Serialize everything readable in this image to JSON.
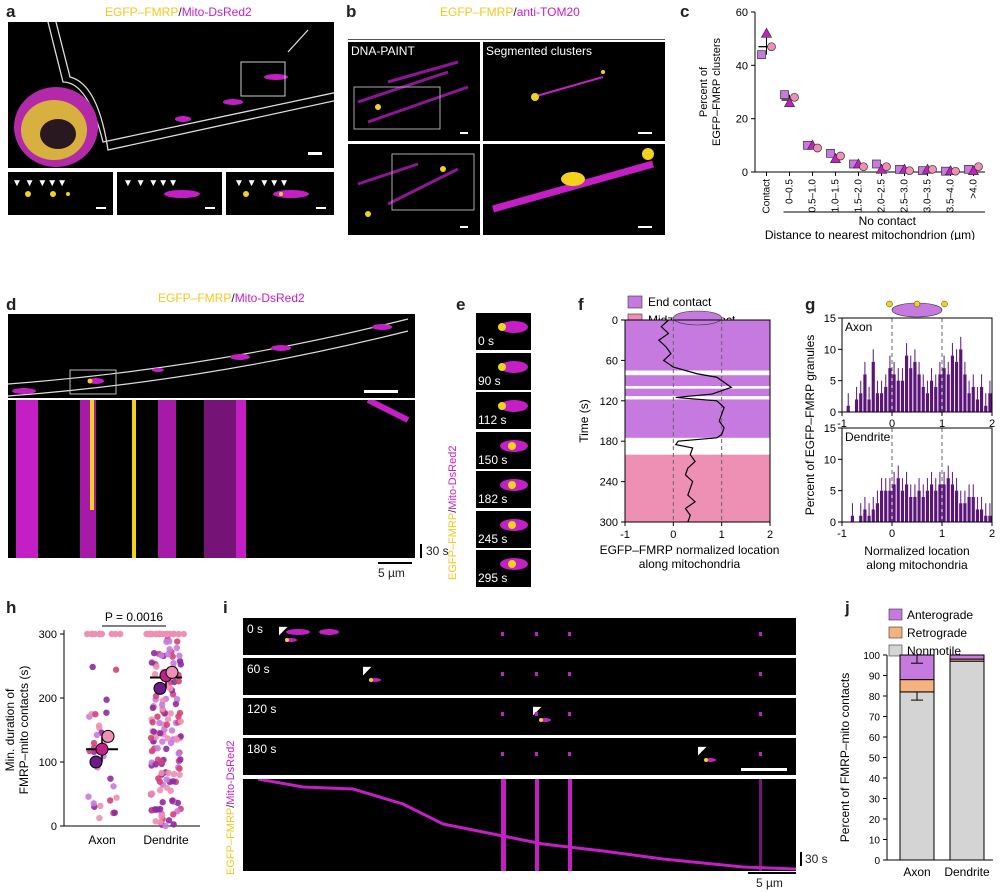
{
  "panels": {
    "a": {
      "label": "a",
      "title_y": "EGFP–FMRP",
      "title_sep": "/",
      "title_m": "Mito-DsRed2"
    },
    "b": {
      "label": "b",
      "title_y": "EGFP–FMRP",
      "title_sep": "/",
      "title_m": "anti-TOM20",
      "sub_left": "DNA-PAINT",
      "sub_right": "Segmented clusters"
    },
    "c": {
      "label": "c"
    },
    "d": {
      "label": "d",
      "title_y": "EGFP–FMRP",
      "title_sep": "/",
      "title_m": "Mito-DsRed2",
      "time_bar": "30 s",
      "space_bar": "5 µm"
    },
    "e": {
      "label": "e",
      "times": [
        "0 s",
        "90 s",
        "112 s",
        "150 s",
        "182 s",
        "245 s",
        "295 s"
      ],
      "side_y": "EGFP–FMRP",
      "side_sep": "/",
      "side_m": "Mito-DsRed2"
    },
    "f": {
      "label": "f"
    },
    "g": {
      "label": "g"
    },
    "h": {
      "label": "h"
    },
    "i": {
      "label": "i",
      "times": [
        "0 s",
        "60 s",
        "120 s",
        "180 s"
      ],
      "side_y": "EGFP–FMRP",
      "side_sep": "/",
      "side_m": "Mito-DsRed2",
      "time_bar": "30 s",
      "space_bar": "5 µm"
    },
    "j": {
      "label": "j"
    }
  },
  "colors": {
    "magenta": "#c41fc4",
    "yellow": "#f2d21a",
    "purple": "#5b147a",
    "lilac": "#c67ae0",
    "pink": "#ee8fb4",
    "orange": "#f4b27e",
    "grey": "#d4d4d4"
  },
  "chart_data": [
    {
      "id": "c",
      "type": "scatter",
      "ylabel": "Percent of EGFP–FMRP clusters",
      "xlabel": "Distance to nearest mitochondrion (µm)",
      "group_label": "No contact",
      "categories": [
        "Contact",
        "0–0.5",
        "0.5–1.0",
        "1.0–1.5",
        "1.5–2.0",
        "2.0–2.5",
        "2.5–3.0",
        "3.0–3.5",
        "3.5–4.0",
        ">4.0"
      ],
      "ylim": [
        0,
        60
      ],
      "yticks": [
        0,
        20,
        40,
        60
      ],
      "means": [
        47,
        27,
        10,
        6,
        3,
        2,
        1,
        1,
        0.5,
        1
      ],
      "replicates": [
        [
          44,
          52,
          47
        ],
        [
          29,
          26,
          28
        ],
        [
          10,
          10,
          9
        ],
        [
          7,
          5,
          6
        ],
        [
          3,
          3,
          2
        ],
        [
          3,
          1,
          2
        ],
        [
          1,
          1,
          0.5
        ],
        [
          0.5,
          1,
          1
        ],
        [
          0.3,
          0.5,
          0.3
        ],
        [
          1,
          0.5,
          2
        ]
      ]
    },
    {
      "id": "f",
      "type": "line",
      "xlabel": "EGFP–FMRP normalized location along mitochondria",
      "ylabel": "Time (s)",
      "xlim": [
        -1,
        2
      ],
      "ylim": [
        0,
        300
      ],
      "xticks": [
        -1,
        0,
        1,
        2
      ],
      "yticks": [
        0,
        60,
        120,
        180,
        240,
        300
      ],
      "legend": [
        "End contact",
        "Midzone contact"
      ],
      "bands": [
        {
          "type": "end",
          "from": 0,
          "to": 75
        },
        {
          "type": "end",
          "from": 82,
          "to": 98
        },
        {
          "type": "end",
          "from": 102,
          "to": 113
        },
        {
          "type": "end",
          "from": 118,
          "to": 175
        },
        {
          "type": "mid",
          "from": 200,
          "to": 300
        }
      ],
      "trace_t": [
        0,
        10,
        20,
        30,
        40,
        50,
        60,
        70,
        80,
        85,
        90,
        95,
        100,
        105,
        110,
        115,
        120,
        130,
        140,
        150,
        160,
        170,
        175,
        180,
        185,
        190,
        200,
        210,
        220,
        230,
        240,
        250,
        260,
        270,
        280,
        290,
        300
      ],
      "trace_x": [
        -0.1,
        -0.25,
        -0.1,
        -0.3,
        -0.15,
        -0.05,
        -0.2,
        0.0,
        0.5,
        0.9,
        1.0,
        1.1,
        1.2,
        1.0,
        0.8,
        0.05,
        0.9,
        1.05,
        1.0,
        0.95,
        1.05,
        1.0,
        0.9,
        0.1,
        0.05,
        0.4,
        0.35,
        0.45,
        0.3,
        0.25,
        0.4,
        0.35,
        0.3,
        0.45,
        0.25,
        0.35,
        0.3
      ]
    },
    {
      "id": "g",
      "type": "bar",
      "ylabel": "Percent of EGFP–FMRP granules",
      "xlabel": "Normalized location along mitochondria",
      "xlim": [
        -1,
        2
      ],
      "ylim": [
        0,
        15
      ],
      "xticks": [
        -1,
        0,
        1,
        2
      ],
      "yticks": [
        0,
        5,
        10,
        15
      ],
      "series": [
        {
          "name": "Axon",
          "values": [
            0,
            1,
            0,
            2,
            3,
            6,
            2,
            8,
            3,
            3,
            4,
            7,
            6,
            5,
            5,
            9,
            7,
            8,
            6,
            4,
            3,
            5,
            4,
            6,
            7,
            6,
            9,
            8,
            10,
            6,
            3,
            4,
            2,
            4,
            1,
            3
          ]
        },
        {
          "name": "Dendrite",
          "values": [
            0,
            0,
            1,
            0,
            1,
            2,
            1,
            2,
            3,
            5,
            5,
            5,
            6,
            7,
            5,
            6,
            4,
            4,
            5,
            4,
            5,
            6,
            5,
            6,
            6,
            7,
            6,
            5,
            3,
            3,
            4,
            4,
            2,
            2,
            1,
            1
          ]
        }
      ]
    },
    {
      "id": "h",
      "type": "scatter",
      "ylabel": "Min. duration of FMRP–mito contacts (s)",
      "categories": [
        "Axon",
        "Dendrite"
      ],
      "ylim": [
        0,
        300
      ],
      "yticks": [
        0,
        100,
        200,
        300
      ],
      "pvalue": "P = 0.0016",
      "means": [
        120,
        232
      ],
      "replicate_means": [
        [
          100,
          120,
          140
        ],
        [
          215,
          235,
          240
        ]
      ]
    },
    {
      "id": "j",
      "type": "bar",
      "ylabel": "Percent of FMRP–mito contacts",
      "categories": [
        "Axon",
        "Dendrite"
      ],
      "ylim": [
        0,
        100
      ],
      "yticks": [
        0,
        10,
        20,
        30,
        40,
        50,
        60,
        70,
        80,
        90,
        100
      ],
      "series": [
        {
          "name": "Nonmotile",
          "values": [
            82,
            97
          ]
        },
        {
          "name": "Retrograde",
          "values": [
            6,
            1
          ]
        },
        {
          "name": "Anterograde",
          "values": [
            12,
            2
          ]
        }
      ]
    }
  ]
}
